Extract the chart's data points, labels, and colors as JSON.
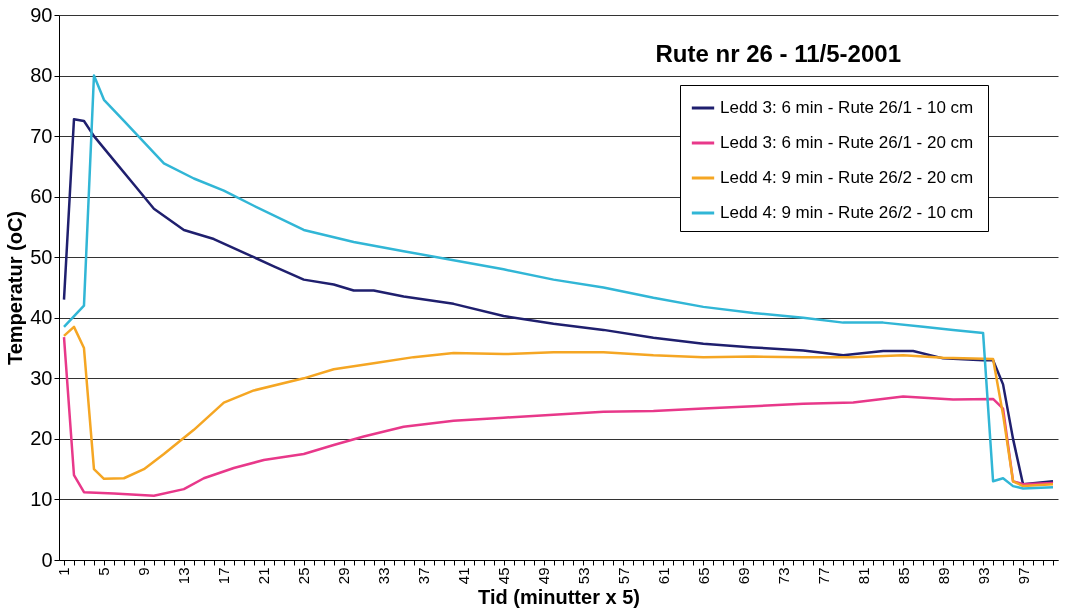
{
  "chart_data": {
    "type": "line",
    "title": "Rute nr 26 - 11/5-2001",
    "xlabel": "Tid (minutter x 5)",
    "ylabel": "Temperatur (oC)",
    "xlim": [
      0.5,
      100.5
    ],
    "ylim": [
      0,
      90
    ],
    "yticks": [
      0,
      10,
      20,
      30,
      40,
      50,
      60,
      70,
      80,
      90
    ],
    "xticks": [
      1,
      {
        "value": 2,
        "label": null
      },
      {
        "value": 3,
        "label": null
      },
      {
        "value": 4,
        "label": null
      },
      5,
      {
        "value": 6,
        "label": null
      },
      {
        "value": 7,
        "label": null
      },
      {
        "value": 8,
        "label": null
      },
      9,
      {
        "value": 10,
        "label": null
      },
      {
        "value": 11,
        "label": null
      },
      {
        "value": 12,
        "label": null
      },
      13,
      {
        "value": 14,
        "label": null
      },
      {
        "value": 15,
        "label": null
      },
      {
        "value": 16,
        "label": null
      },
      17,
      {
        "value": 18,
        "label": null
      },
      {
        "value": 19,
        "label": null
      },
      {
        "value": 20,
        "label": null
      },
      21,
      {
        "value": 22,
        "label": null
      },
      {
        "value": 23,
        "label": null
      },
      {
        "value": 24,
        "label": null
      },
      25,
      {
        "value": 26,
        "label": null
      },
      {
        "value": 27,
        "label": null
      },
      {
        "value": 28,
        "label": null
      },
      29,
      {
        "value": 30,
        "label": null
      },
      {
        "value": 31,
        "label": null
      },
      {
        "value": 32,
        "label": null
      },
      33,
      {
        "value": 34,
        "label": null
      },
      {
        "value": 35,
        "label": null
      },
      {
        "value": 36,
        "label": null
      },
      37,
      {
        "value": 38,
        "label": null
      },
      {
        "value": 39,
        "label": null
      },
      {
        "value": 40,
        "label": null
      },
      41,
      {
        "value": 42,
        "label": null
      },
      {
        "value": 43,
        "label": null
      },
      {
        "value": 44,
        "label": null
      },
      45,
      {
        "value": 46,
        "label": null
      },
      {
        "value": 47,
        "label": null
      },
      {
        "value": 48,
        "label": null
      },
      49,
      {
        "value": 50,
        "label": null
      },
      {
        "value": 51,
        "label": null
      },
      {
        "value": 52,
        "label": null
      },
      53,
      {
        "value": 54,
        "label": null
      },
      {
        "value": 55,
        "label": null
      },
      {
        "value": 56,
        "label": null
      },
      57,
      {
        "value": 58,
        "label": null
      },
      {
        "value": 59,
        "label": null
      },
      {
        "value": 60,
        "label": null
      },
      61,
      {
        "value": 62,
        "label": null
      },
      {
        "value": 63,
        "label": null
      },
      {
        "value": 64,
        "label": null
      },
      65,
      {
        "value": 66,
        "label": null
      },
      {
        "value": 67,
        "label": null
      },
      {
        "value": 68,
        "label": null
      },
      69,
      {
        "value": 70,
        "label": null
      },
      {
        "value": 71,
        "label": null
      },
      {
        "value": 72,
        "label": null
      },
      73,
      {
        "value": 74,
        "label": null
      },
      {
        "value": 75,
        "label": null
      },
      {
        "value": 76,
        "label": null
      },
      77,
      {
        "value": 78,
        "label": null
      },
      {
        "value": 79,
        "label": null
      },
      {
        "value": 80,
        "label": null
      },
      81,
      {
        "value": 82,
        "label": null
      },
      {
        "value": 83,
        "label": null
      },
      {
        "value": 84,
        "label": null
      },
      85,
      {
        "value": 86,
        "label": null
      },
      {
        "value": 87,
        "label": null
      },
      {
        "value": 88,
        "label": null
      },
      89,
      {
        "value": 90,
        "label": null
      },
      {
        "value": 91,
        "label": null
      },
      {
        "value": 92,
        "label": null
      },
      93,
      {
        "value": 94,
        "label": null
      },
      {
        "value": 95,
        "label": null
      },
      {
        "value": 96,
        "label": null
      },
      97,
      {
        "value": 98,
        "label": null
      },
      {
        "value": 99,
        "label": null
      },
      {
        "value": 100,
        "label": null
      }
    ],
    "grid": "y",
    "legend": "top right",
    "marker": "none",
    "line_style": "solid",
    "series": [
      {
        "name": "Ledd 3:  6 min - Rute 26/1 - 10 cm",
        "color": "#1f1f6e",
        "x": [
          1,
          2,
          3,
          4,
          6,
          8,
          10,
          13,
          16,
          20,
          22,
          25,
          28,
          30,
          32,
          35,
          40,
          45,
          50,
          55,
          60,
          65,
          70,
          75,
          79,
          83,
          86,
          89,
          93,
          94,
          95,
          96,
          97,
          100
        ],
        "values": [
          43,
          72.8,
          72.5,
          70,
          66,
          62,
          58,
          54.5,
          53,
          50,
          48.5,
          46.3,
          45.5,
          44.5,
          44.5,
          43.5,
          42.3,
          40.3,
          39,
          38,
          36.7,
          35.7,
          35.1,
          34.6,
          33.8,
          34.5,
          34.5,
          33.3,
          33,
          33,
          29,
          20,
          12.5,
          13
        ]
      },
      {
        "name": "Ledd 3:  6 min - Rute 26/1 - 20 cm",
        "color": "#e8388a",
        "x": [
          1,
          2,
          3,
          6,
          10,
          13,
          15,
          18,
          21,
          25,
          28,
          31,
          35,
          40,
          45,
          50,
          55,
          60,
          65,
          70,
          75,
          80,
          85,
          90,
          94,
          95,
          96,
          97,
          100
        ],
        "values": [
          36.8,
          14,
          11.2,
          11,
          10.6,
          11.7,
          13.5,
          15.2,
          16.5,
          17.5,
          19,
          20.4,
          22,
          23,
          23.5,
          24,
          24.5,
          24.6,
          25,
          25.4,
          25.8,
          26,
          27,
          26.5,
          26.6,
          25,
          13,
          12.5,
          12.7
        ]
      },
      {
        "name": "Ledd 4:  9 min - Rute 26/2 - 20 cm",
        "color": "#f5a623",
        "x": [
          1,
          2,
          3,
          4,
          5,
          7,
          9,
          11,
          14,
          17,
          20,
          25,
          28,
          32,
          36,
          40,
          45,
          50,
          55,
          60,
          65,
          70,
          75,
          80,
          85,
          89,
          94,
          95,
          96,
          97,
          100
        ],
        "values": [
          37,
          38.5,
          35,
          15,
          13.4,
          13.5,
          15,
          17.5,
          21.5,
          26,
          28,
          30,
          31.5,
          32.5,
          33.5,
          34.2,
          34,
          34.3,
          34.3,
          33.8,
          33.5,
          33.6,
          33.5,
          33.5,
          33.8,
          33.4,
          33.2,
          24,
          13,
          12.2,
          12.5
        ]
      },
      {
        "name": "Ledd 4:  9 min - Rute 26/2 - 10 cm",
        "color": "#31b6d6",
        "x": [
          1,
          3,
          4,
          5,
          7,
          9,
          11,
          14,
          17,
          20,
          25,
          30,
          35,
          40,
          45,
          50,
          55,
          60,
          65,
          70,
          75,
          79,
          83,
          87,
          90,
          93,
          94,
          95,
          96,
          97,
          100
        ],
        "values": [
          38.5,
          42,
          80,
          76,
          72.5,
          69,
          65.5,
          63,
          61,
          58.5,
          54.5,
          52.5,
          51,
          49.5,
          48,
          46.3,
          45,
          43.3,
          41.8,
          40.8,
          40,
          39.2,
          39.2,
          38.5,
          38,
          37.5,
          13,
          13.5,
          12.2,
          11.8,
          12
        ]
      }
    ]
  }
}
